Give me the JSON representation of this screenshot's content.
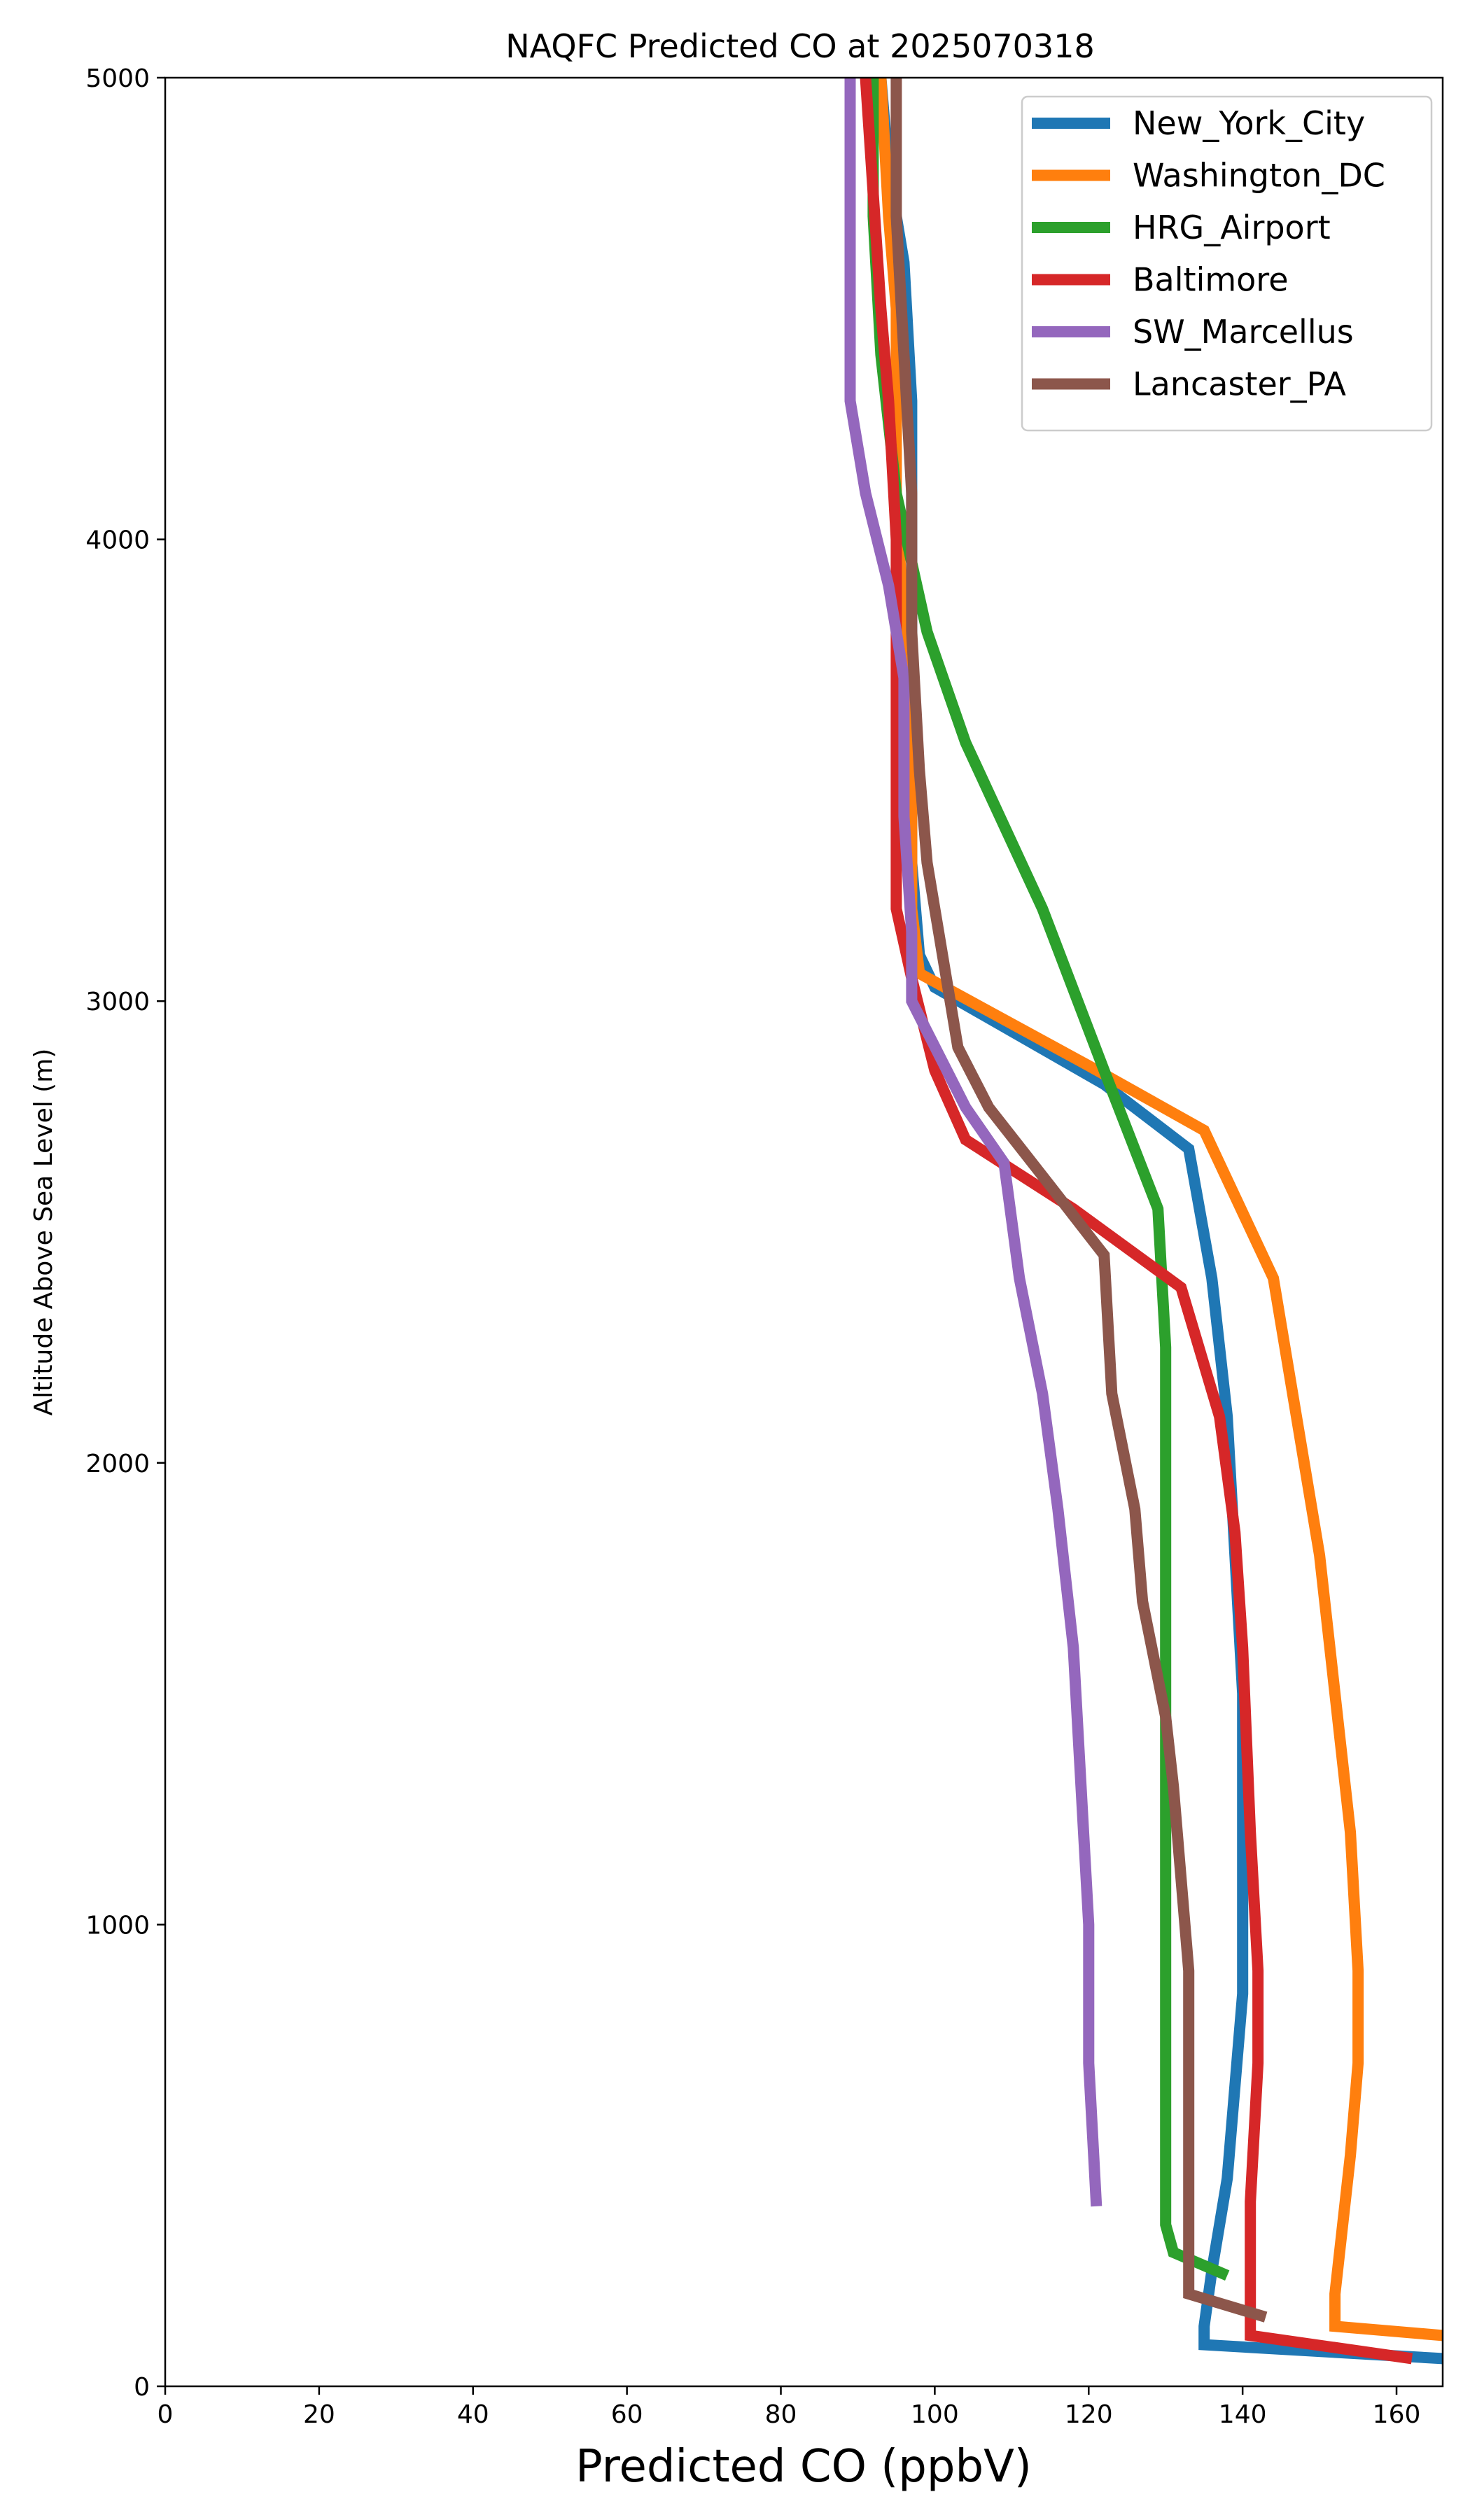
{
  "chart_data": {
    "type": "line",
    "title": "NAQFC Predicted CO at 2025070318",
    "xlabel": "Predicted CO (ppbV)",
    "ylabel": "Altitude Above Sea Level (m)",
    "xlim": [
      0,
      166
    ],
    "ylim": [
      0,
      5000
    ],
    "xticks": [
      0,
      20,
      40,
      60,
      80,
      100,
      120,
      140,
      160
    ],
    "yticks": [
      0,
      1000,
      2000,
      3000,
      4000,
      5000
    ],
    "grid": false,
    "legend_position": "top-right",
    "series": [
      {
        "name": "New_York_City",
        "color": "#1f77b4",
        "points": [
          [
            166,
            60
          ],
          [
            135,
            90
          ],
          [
            135,
            130
          ],
          [
            136,
            250
          ],
          [
            138,
            450
          ],
          [
            139,
            650
          ],
          [
            140,
            850
          ],
          [
            140,
            1150
          ],
          [
            140,
            1500
          ],
          [
            139,
            1800
          ],
          [
            138,
            2100
          ],
          [
            136,
            2400
          ],
          [
            133,
            2680
          ],
          [
            122,
            2820
          ],
          [
            100,
            3030
          ],
          [
            98,
            3100
          ],
          [
            97,
            3300
          ],
          [
            97,
            3700
          ],
          [
            97,
            4000
          ],
          [
            97,
            4300
          ],
          [
            96,
            4600
          ],
          [
            94,
            4800
          ],
          [
            93,
            5000
          ]
        ]
      },
      {
        "name": "Washington_DC",
        "color": "#ff7f0e",
        "points": [
          [
            166,
            110
          ],
          [
            152,
            130
          ],
          [
            152,
            200
          ],
          [
            153,
            350
          ],
          [
            154,
            500
          ],
          [
            155,
            700
          ],
          [
            155,
            900
          ],
          [
            154,
            1200
          ],
          [
            152,
            1500
          ],
          [
            150,
            1800
          ],
          [
            147,
            2100
          ],
          [
            144,
            2400
          ],
          [
            135,
            2720
          ],
          [
            120,
            2860
          ],
          [
            98,
            3060
          ],
          [
            97,
            3200
          ],
          [
            97,
            3500
          ],
          [
            96,
            3800
          ],
          [
            95,
            4100
          ],
          [
            95,
            4500
          ],
          [
            94,
            4700
          ],
          [
            93,
            5000
          ]
        ]
      },
      {
        "name": "HRG_Airport",
        "color": "#2ca02c",
        "points": [
          [
            138,
            240
          ],
          [
            131,
            290
          ],
          [
            130,
            350
          ],
          [
            130,
            500
          ],
          [
            130,
            800
          ],
          [
            130,
            1100
          ],
          [
            130,
            1400
          ],
          [
            130,
            1700
          ],
          [
            130,
            2000
          ],
          [
            130,
            2250
          ],
          [
            129,
            2550
          ],
          [
            122,
            2850
          ],
          [
            114,
            3200
          ],
          [
            104,
            3560
          ],
          [
            99,
            3800
          ],
          [
            95,
            4100
          ],
          [
            93,
            4400
          ],
          [
            92,
            4700
          ],
          [
            92,
            5000
          ]
        ]
      },
      {
        "name": "Baltimore",
        "color": "#d62728",
        "points": [
          [
            162,
            60
          ],
          [
            141,
            110
          ],
          [
            141,
            400
          ],
          [
            142,
            700
          ],
          [
            142,
            900
          ],
          [
            141,
            1200
          ],
          [
            140,
            1600
          ],
          [
            139,
            1850
          ],
          [
            137,
            2100
          ],
          [
            132,
            2380
          ],
          [
            118,
            2550
          ],
          [
            104,
            2700
          ],
          [
            100,
            2850
          ],
          [
            97,
            3050
          ],
          [
            95,
            3200
          ],
          [
            95,
            3400
          ],
          [
            95,
            3600
          ],
          [
            95,
            3800
          ],
          [
            95,
            4000
          ],
          [
            94,
            4300
          ],
          [
            93,
            4500
          ],
          [
            92,
            4750
          ],
          [
            91,
            5000
          ]
        ]
      },
      {
        "name": "SW_Marcellus",
        "color": "#9467bd",
        "points": [
          [
            121,
            390
          ],
          [
            120,
            700
          ],
          [
            120,
            1000
          ],
          [
            119,
            1300
          ],
          [
            118,
            1600
          ],
          [
            116,
            1900
          ],
          [
            114,
            2150
          ],
          [
            111,
            2400
          ],
          [
            109,
            2650
          ],
          [
            104,
            2770
          ],
          [
            97,
            3000
          ],
          [
            97,
            3150
          ],
          [
            96,
            3400
          ],
          [
            96,
            3700
          ],
          [
            94,
            3900
          ],
          [
            91,
            4100
          ],
          [
            89,
            4300
          ],
          [
            89,
            4550
          ],
          [
            89,
            4800
          ],
          [
            89,
            5000
          ]
        ]
      },
      {
        "name": "Lancaster_PA",
        "color": "#8c564b",
        "points": [
          [
            143,
            150
          ],
          [
            133,
            200
          ],
          [
            133,
            400
          ],
          [
            133,
            700
          ],
          [
            133,
            900
          ],
          [
            132,
            1100
          ],
          [
            131,
            1300
          ],
          [
            130,
            1450
          ],
          [
            127,
            1700
          ],
          [
            126,
            1900
          ],
          [
            123,
            2150
          ],
          [
            122,
            2450
          ],
          [
            115,
            2600
          ],
          [
            107,
            2770
          ],
          [
            103,
            2900
          ],
          [
            101,
            3100
          ],
          [
            99,
            3300
          ],
          [
            98,
            3500
          ],
          [
            97,
            3800
          ],
          [
            97,
            4100
          ],
          [
            96,
            4400
          ],
          [
            95,
            4700
          ],
          [
            95,
            5000
          ]
        ]
      }
    ]
  }
}
